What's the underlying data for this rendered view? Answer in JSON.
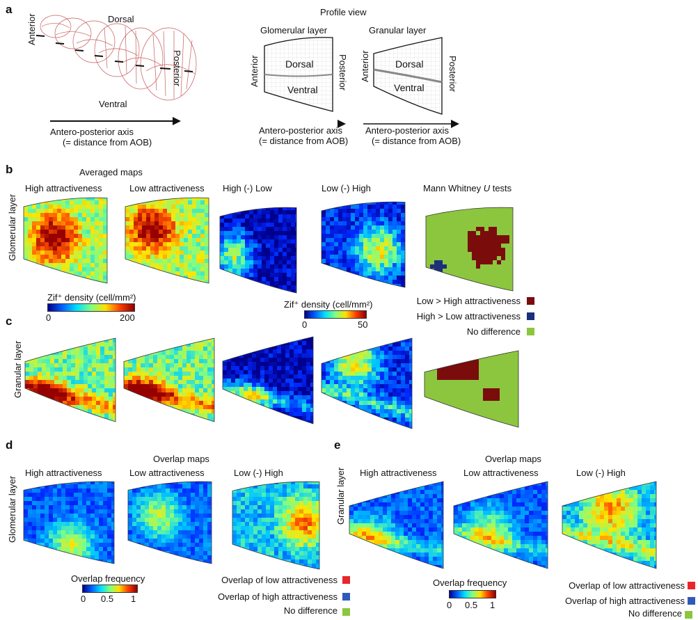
{
  "panels": {
    "a": "a",
    "b": "b",
    "c": "c",
    "d": "d",
    "e": "e"
  },
  "a": {
    "dorsal": "Dorsal",
    "ventral": "Ventral",
    "anterior": "Anterior",
    "posterior": "Posterior",
    "ap_axis": "Antero-posterior axis",
    "ap_axis_sub": "(= distance from AOB)",
    "profile_view": "Profile view",
    "glomerular_layer": "Glomerular layer",
    "granular_layer": "Granular layer",
    "profile_dorsal": "Dorsal",
    "profile_ventral": "Ventral",
    "profile_anterior": "Anterior",
    "profile_posterior": "Posterior"
  },
  "b": {
    "averaged_maps": "Averaged maps",
    "col_titles": [
      "High attractiveness",
      "Low attractiveness",
      "High (-) Low",
      "Low (-) High"
    ],
    "mw_prefix": "Mann Whitney ",
    "mw_u": "U",
    "mw_suffix": " tests",
    "row_label": "Glomerular layer"
  },
  "c": {
    "row_label": "Granular layer"
  },
  "colorbars": {
    "density_label_1": "Zif⁺ density (cell/mm²)",
    "density_min_1": "0",
    "density_max_1": "200",
    "density_label_2": "Zif⁺ density (cell/mm²)",
    "density_min_2": "0",
    "density_max_2": "50",
    "overlap_label": "Overlap frequency",
    "overlap_ticks": [
      "0",
      "0.5",
      "1"
    ]
  },
  "mw_legend": [
    {
      "label": "Low > High attractiveness",
      "color": "#7a0c0c"
    },
    {
      "label": "High > Low attractiveness",
      "color": "#1b2f7a"
    },
    {
      "label": "No difference",
      "color": "#8cc63f"
    }
  ],
  "d": {
    "overlap_maps": "Overlap maps",
    "col_titles": [
      "High attractiveness",
      "Low attractiveness",
      "Low (-) High"
    ],
    "row_label": "Glomerular layer"
  },
  "e": {
    "overlap_maps": "Overlap maps",
    "col_titles": [
      "High attractiveness",
      "Low attractiveness",
      "Low (-) High"
    ],
    "row_label": "Granular layer"
  },
  "overlap_legend": [
    {
      "label": "Overlap of low attractiveness",
      "color": "#e8262b"
    },
    {
      "label": "Overlap of high attractiveness",
      "color": "#2f5bb7"
    },
    {
      "label": "No difference",
      "color": "#8cc63f"
    }
  ],
  "colors": {
    "jet_dark": "#00008f",
    "jet_red": "#e02010",
    "green": "#8cc63f",
    "dark_red": "#7a0c0c",
    "navy": "#1b2f7a"
  }
}
